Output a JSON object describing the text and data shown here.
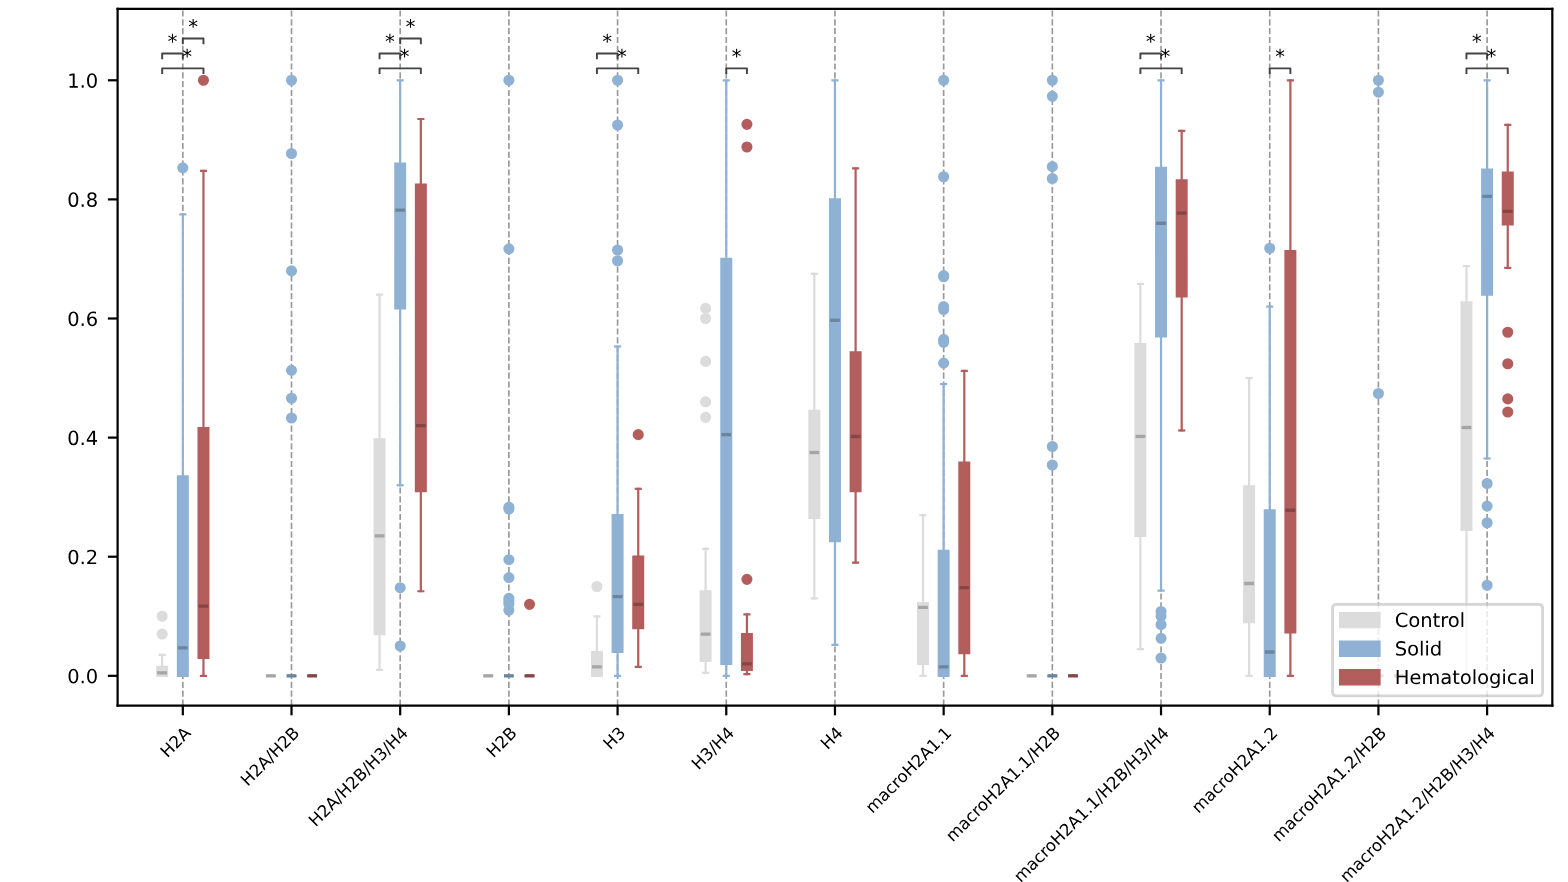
{
  "chart_data": {
    "type": "box",
    "categories": [
      "H2A",
      "H2A/H2B",
      "H2A/H2B/H3/H4",
      "H2B",
      "H3",
      "H3/H4",
      "H4",
      "macroH2A1.1",
      "macroH2A1.1/H2B",
      "macroH2A1.1/H2B/H3/H4",
      "macroH2A1.2",
      "macroH2A1.2/H2B",
      "macroH2A1.2/H2B/H3/H4"
    ],
    "ylim": [
      -0.05,
      1.12
    ],
    "yticks": [
      {
        "value": 0,
        "label": "0.0"
      },
      {
        "value": 0.2,
        "label": "0.2"
      },
      {
        "value": 0.4,
        "label": "0.4"
      },
      {
        "value": 0.6,
        "label": "0.6"
      },
      {
        "value": 0.8,
        "label": "0.8"
      },
      {
        "value": 1,
        "label": "1.0"
      }
    ],
    "grid": "x",
    "legend": "bottom right",
    "series": [
      {
        "name": "Control",
        "color": "#dcdcdc",
        "boxes": [
          {
            "low": 0,
            "q1": 0,
            "median": 0.005,
            "q3": 0.015,
            "high": 0.035,
            "outliers": [
              0.07,
              0.1
            ]
          },
          {
            "low": 0,
            "q1": 0,
            "median": 0,
            "q3": 0,
            "high": 0
          },
          {
            "low": 0.01,
            "q1": 0.07,
            "median": 0.235,
            "q3": 0.397,
            "high": 0.64
          },
          {
            "low": 0,
            "q1": 0,
            "median": 0,
            "q3": 0,
            "high": 0
          },
          {
            "low": 0,
            "q1": 0,
            "median": 0.015,
            "q3": 0.04,
            "high": 0.1,
            "outliers": [
              0.15
            ]
          },
          {
            "low": 0.005,
            "q1": 0.025,
            "median": 0.07,
            "q3": 0.142,
            "high": 0.213,
            "outliers": [
              0.434,
              0.46,
              0.528,
              0.6,
              0.617
            ]
          },
          {
            "low": 0.13,
            "q1": 0.265,
            "median": 0.375,
            "q3": 0.445,
            "high": 0.675
          },
          {
            "low": 0,
            "q1": 0.02,
            "median": 0.115,
            "q3": 0.122,
            "high": 0.27
          },
          {
            "low": 0,
            "q1": 0,
            "median": 0,
            "q3": 0,
            "high": 0
          },
          {
            "low": 0.045,
            "q1": 0.235,
            "median": 0.402,
            "q3": 0.557,
            "high": 0.658
          },
          {
            "low": 0,
            "q1": 0.09,
            "median": 0.155,
            "q3": 0.318,
            "high": 0.5
          },
          {
            "low": 0,
            "q1": 0,
            "median": 0,
            "q3": 0,
            "high": 0
          },
          {
            "low": 0,
            "q1": 0.245,
            "median": 0.417,
            "q3": 0.627,
            "high": 0.688
          }
        ]
      },
      {
        "name": "Solid",
        "color": "#8fb2d4",
        "boxes": [
          {
            "low": 0,
            "q1": 0,
            "median": 0.047,
            "q3": 0.335,
            "high": 0.775,
            "outliers": [
              0.853
            ]
          },
          {
            "low": 0,
            "q1": 0,
            "median": 0,
            "q3": 0,
            "high": 0,
            "outliers": [
              0.433,
              0.466,
              0.513,
              0.68,
              0.877,
              1.0
            ]
          },
          {
            "low": 0.32,
            "q1": 0.617,
            "median": 0.782,
            "q3": 0.86,
            "high": 1.0,
            "outliers": [
              0.05,
              0.148
            ]
          },
          {
            "low": 0,
            "q1": 0,
            "median": 0,
            "q3": 0,
            "high": 0,
            "outliers": [
              0.11,
              0.12,
              0.125,
              0.13,
              0.165,
              0.195,
              0.28,
              0.283,
              0.717,
              1.0
            ]
          },
          {
            "low": 0,
            "q1": 0.04,
            "median": 0.133,
            "q3": 0.27,
            "high": 0.553,
            "outliers": [
              0.697,
              0.715,
              0.925,
              1.0
            ]
          },
          {
            "low": 0,
            "q1": 0.02,
            "median": 0.405,
            "q3": 0.7,
            "high": 1.0
          },
          {
            "low": 0.052,
            "q1": 0.226,
            "median": 0.597,
            "q3": 0.8,
            "high": 1.0
          },
          {
            "low": 0,
            "q1": 0,
            "median": 0.015,
            "q3": 0.21,
            "high": 0.49,
            "outliers": [
              0.525,
              0.56,
              0.565,
              0.615,
              0.62,
              0.67,
              0.672,
              0.838,
              1.0
            ]
          },
          {
            "low": 0,
            "q1": 0,
            "median": 0,
            "q3": 0,
            "high": 0,
            "outliers": [
              0.354,
              0.385,
              0.835,
              0.855,
              0.973,
              1.0
            ]
          },
          {
            "low": 0.143,
            "q1": 0.57,
            "median": 0.76,
            "q3": 0.853,
            "high": 1.0,
            "outliers": [
              0.03,
              0.063,
              0.086,
              0.1,
              0.108
            ]
          },
          {
            "low": 0,
            "q1": 0,
            "median": 0.04,
            "q3": 0.278,
            "high": 0.62,
            "outliers": [
              0.718
            ]
          },
          {
            "low": 0,
            "q1": 0,
            "median": 0,
            "q3": 0,
            "high": 0,
            "outliers": [
              0.474,
              0.98,
              1.0
            ]
          },
          {
            "low": 0.365,
            "q1": 0.64,
            "median": 0.805,
            "q3": 0.85,
            "high": 1.0,
            "outliers": [
              0.152,
              0.257,
              0.285,
              0.323
            ]
          }
        ]
      },
      {
        "name": "Hematological",
        "color": "#b35d5d",
        "boxes": [
          {
            "low": 0,
            "q1": 0.03,
            "median": 0.117,
            "q3": 0.416,
            "high": 0.848,
            "outliers": [
              1.0
            ]
          },
          {
            "low": 0,
            "q1": 0,
            "median": 0,
            "q3": 0,
            "high": 0
          },
          {
            "low": 0.142,
            "q1": 0.31,
            "median": 0.42,
            "q3": 0.825,
            "high": 0.935
          },
          {
            "low": 0,
            "q1": 0,
            "median": 0,
            "q3": 0,
            "high": 0,
            "outliers": [
              0.12
            ]
          },
          {
            "low": 0.015,
            "q1": 0.08,
            "median": 0.12,
            "q3": 0.2,
            "high": 0.314,
            "outliers": [
              0.405
            ]
          },
          {
            "low": 0.003,
            "q1": 0.01,
            "median": 0.02,
            "q3": 0.07,
            "high": 0.103,
            "outliers": [
              0.162,
              0.888,
              0.926
            ]
          },
          {
            "low": 0.19,
            "q1": 0.31,
            "median": 0.402,
            "q3": 0.543,
            "high": 0.852
          },
          {
            "low": 0,
            "q1": 0.038,
            "median": 0.148,
            "q3": 0.358,
            "high": 0.512
          },
          {
            "low": 0,
            "q1": 0,
            "median": 0,
            "q3": 0,
            "high": 0
          },
          {
            "low": 0.412,
            "q1": 0.637,
            "median": 0.777,
            "q3": 0.832,
            "high": 0.915
          },
          {
            "low": 0,
            "q1": 0.073,
            "median": 0.278,
            "q3": 0.713,
            "high": 1.0
          },
          {
            "low": 0,
            "q1": 0,
            "median": 0,
            "q3": 0,
            "high": 0
          },
          {
            "low": 0.685,
            "q1": 0.758,
            "median": 0.78,
            "q3": 0.845,
            "high": 0.925,
            "outliers": [
              0.443,
              0.465,
              0.524,
              0.577
            ]
          }
        ]
      }
    ],
    "annotations": [
      "*",
      "*",
      "*",
      "*",
      "*",
      "*",
      "*",
      "*",
      "*",
      "*",
      "*",
      "*",
      "*",
      "*"
    ]
  }
}
